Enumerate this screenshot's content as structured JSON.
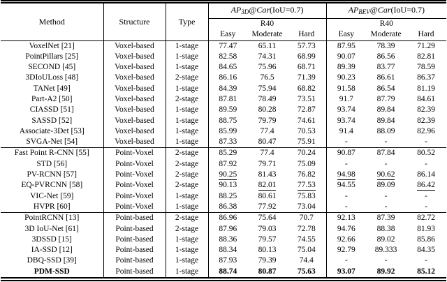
{
  "header": {
    "method": "Method",
    "structure": "Structure",
    "type": "Type",
    "r40": "R40",
    "difficulty": [
      "Easy",
      "Moderate",
      "Hard"
    ],
    "ap3d": {
      "ap": "AP",
      "sub": "3D",
      "at": "@",
      "car": "Car",
      "iou": "(IoU=0.7)"
    },
    "apbev": {
      "ap": "AP",
      "sub": "BEV",
      "at": "@",
      "car": "Car",
      "iou": "(IoU=0.7)"
    }
  },
  "colors": {
    "text": "#000000",
    "background": "#ffffff",
    "rule": "#000000"
  },
  "chart_data": {
    "type": "table",
    "title": "AP3D@Car(IoU=0.7) and APBEV@Car(IoU=0.7), R40, Easy/Moderate/Hard"
  },
  "groups": [
    {
      "name": "Voxel-based",
      "rows": [
        {
          "method": "VoxelNet [21]",
          "structure": "Voxel-based",
          "type": "1-stage",
          "values": [
            "77.47",
            "65.11",
            "57.73",
            "87.95",
            "78.39",
            "71.29"
          ]
        },
        {
          "method": "PointPillars [25]",
          "structure": "Voxel-based",
          "type": "1-stage",
          "values": [
            "82.58",
            "74.31",
            "68.99",
            "90.07",
            "86.56",
            "82.81"
          ]
        },
        {
          "method": "SECOND [45]",
          "structure": "Voxel-based",
          "type": "1-stage",
          "values": [
            "84.65",
            "75.96",
            "68.71",
            "89.39",
            "83.77",
            "78.59"
          ]
        },
        {
          "method": "3DIoULoss [48]",
          "structure": "Voxel-based",
          "type": "2-stage",
          "values": [
            "86.16",
            "76.5",
            "71.39",
            "90.23",
            "86.61",
            "86.37"
          ]
        },
        {
          "method": "TANet [49]",
          "structure": "Voxel-based",
          "type": "1-stage",
          "values": [
            "84.39",
            "75.94",
            "68.82",
            "91.58",
            "86.54",
            "81.19"
          ]
        },
        {
          "method": "Part-A2 [50]",
          "structure": "Voxel-based",
          "type": "2-stage",
          "values": [
            "87.81",
            "78.49",
            "73.51",
            "91.7",
            "87.79",
            "84.61"
          ]
        },
        {
          "method": "CIASSD [51]",
          "structure": "Voxel-based",
          "type": "1-stage",
          "values": [
            "89.59",
            "80.28",
            "72.87",
            "93.74",
            "89.84",
            "82.39"
          ]
        },
        {
          "method": "SASSD [52]",
          "structure": "Voxel-based",
          "type": "1-stage",
          "values": [
            "88.75",
            "79.79",
            "74.61",
            "93.74",
            "89.84",
            "82.39"
          ]
        },
        {
          "method": "Associate-3Det [53]",
          "structure": "Voxel-based",
          "type": "1-stage",
          "values": [
            "85.99",
            "77.4",
            "70.53",
            "91.4",
            "88.09",
            "82.96"
          ]
        },
        {
          "method": "SVGA-Net [54]",
          "structure": "Voxel-based",
          "type": "1-stage",
          "values": [
            "87.33",
            "80.47",
            "75.91",
            "-",
            "-",
            "-"
          ]
        }
      ]
    },
    {
      "name": "Point-Voxel",
      "rows": [
        {
          "method": "Fast Point R-CNN [55]",
          "structure": "Point-Voxel",
          "type": "2-stage",
          "values": [
            "85.29",
            "77.4",
            "70.24",
            "90.87",
            "87.84",
            "80.52"
          ]
        },
        {
          "method": "STD [56]",
          "structure": "Point-Voxel",
          "type": "2-stage",
          "values": [
            "87.92",
            "79.71",
            "75.09",
            "-",
            "-",
            "-"
          ]
        },
        {
          "method": "PV-RCNN [57]",
          "structure": "Point-Voxel",
          "type": "2-stage",
          "values": [
            "90.25",
            "81.43",
            "76.82",
            "94.98",
            "90.62",
            "86.14"
          ],
          "underline": [
            0,
            3,
            4
          ]
        },
        {
          "method": "EQ-PVRCNN [58]",
          "structure": "Point-Voxel",
          "type": "2-stage",
          "values": [
            "90.13",
            "82.01",
            "77.53",
            "94.55",
            "89.09",
            "86.42"
          ],
          "underline": [
            1,
            2,
            5
          ]
        },
        {
          "method": "VIC-Net [59]",
          "structure": "Point-Voxel",
          "type": "1-stage",
          "values": [
            "88.25",
            "80.61",
            "75.83",
            "-",
            "-",
            "-"
          ]
        },
        {
          "method": "HVPR [60]",
          "structure": "Point-Voxel",
          "type": "1-stage",
          "values": [
            "86.38",
            "77.92",
            "73.04",
            "-",
            "-",
            "-"
          ]
        }
      ]
    },
    {
      "name": "Point-based",
      "rows": [
        {
          "method": "PointRCNN [13]",
          "structure": "Point-based",
          "type": "2-stage",
          "values": [
            "86.96",
            "75.64",
            "70.7",
            "92.13",
            "87.39",
            "82.72"
          ]
        },
        {
          "method": "3D IoU-Net [61]",
          "structure": "Point-based",
          "type": "2-stage",
          "values": [
            "87.96",
            "79.03",
            "72.78",
            "94.76",
            "88.38",
            "81.93"
          ]
        },
        {
          "method": "3DSSD [15]",
          "structure": "Point-based",
          "type": "1-stage",
          "values": [
            "88.36",
            "79.57",
            "74.55",
            "92.66",
            "89.02",
            "85.86"
          ]
        },
        {
          "method": "IA-SSD [12]",
          "structure": "Point-based",
          "type": "1-stage",
          "values": [
            "88.34",
            "80.13",
            "75.04",
            "92.79",
            "89.333",
            "84.35"
          ]
        },
        {
          "method": "DBQ-SSD [39]",
          "structure": "Point-based",
          "type": "1-stage",
          "values": [
            "87.93",
            "79.39",
            "74.4",
            "-",
            "-",
            "-"
          ]
        },
        {
          "method": "PDM-SSD",
          "structure": "Point-based",
          "type": "1-stage",
          "values": [
            "88.74",
            "80.87",
            "75.63",
            "93.07",
            "89.92",
            "85.12"
          ],
          "bold": true
        }
      ]
    }
  ]
}
